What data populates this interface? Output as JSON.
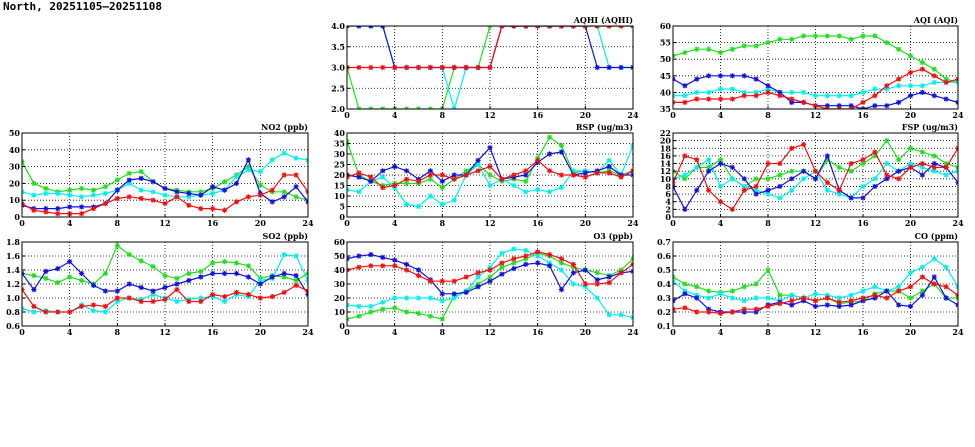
{
  "page": {
    "title": "North, 20251105–20251108"
  },
  "colors": {
    "green": "#22dd22",
    "cyan": "#00eeee",
    "blue": "#1111dd",
    "red": "#ee1111"
  },
  "chart_data": [
    {
      "id": "aqhi",
      "type": "line",
      "title": "AQHI (AQHI)",
      "xlim": [
        0,
        24
      ],
      "xticks": [
        0,
        4,
        8,
        12,
        16,
        20,
        24
      ],
      "ylim": [
        2,
        4
      ],
      "yticks": [
        "2.0",
        "2.5",
        "3.0",
        "3.5",
        "4.0"
      ],
      "grid": true,
      "series": [
        {
          "color": "green",
          "values": [
            3,
            2,
            2,
            2,
            2,
            2,
            2,
            2,
            2,
            3,
            3,
            3,
            4,
            4,
            4,
            4,
            4,
            4,
            4,
            4,
            4,
            4,
            4,
            4,
            4
          ]
        },
        {
          "color": "cyan",
          "values": [
            4,
            4,
            4,
            4,
            3,
            3,
            3,
            3,
            3,
            2,
            3,
            3,
            3,
            4,
            4,
            4,
            4,
            4,
            4,
            4,
            4,
            4,
            3,
            3,
            3
          ]
        },
        {
          "color": "blue",
          "values": [
            4,
            4,
            4,
            4,
            3,
            3,
            3,
            3,
            3,
            3,
            3,
            3,
            3,
            4,
            4,
            4,
            4,
            4,
            4,
            4,
            4,
            3,
            3,
            3,
            3
          ]
        },
        {
          "color": "red",
          "values": [
            3,
            3,
            3,
            3,
            3,
            3,
            3,
            3,
            3,
            3,
            3,
            3,
            3,
            4,
            4,
            4,
            4,
            4,
            4,
            4,
            4,
            4,
            4,
            4,
            4
          ]
        }
      ]
    },
    {
      "id": "aqi",
      "type": "line",
      "title": "AQI (AQI)",
      "xlim": [
        0,
        24
      ],
      "xticks": [
        0,
        4,
        8,
        12,
        16,
        20,
        24
      ],
      "ylim": [
        35,
        60
      ],
      "yticks": [
        "35",
        "40",
        "45",
        "50",
        "55",
        "60"
      ],
      "grid": true,
      "series": [
        {
          "color": "green",
          "values": [
            51,
            52,
            53,
            53,
            52,
            53,
            54,
            54,
            55,
            56,
            56,
            57,
            57,
            57,
            57,
            56,
            57,
            57,
            55,
            53,
            51,
            49,
            47,
            44,
            43
          ]
        },
        {
          "color": "cyan",
          "values": [
            39,
            39,
            40,
            40,
            41,
            41,
            40,
            40,
            41,
            40,
            40,
            40,
            39,
            39,
            39,
            39,
            40,
            41,
            41,
            42,
            42,
            42,
            43,
            43,
            43
          ]
        },
        {
          "color": "blue",
          "values": [
            44,
            42,
            44,
            45,
            45,
            45,
            45,
            44,
            42,
            40,
            37,
            37,
            36,
            36,
            36,
            36,
            35,
            36,
            36,
            37,
            39,
            40,
            39,
            38,
            37
          ]
        },
        {
          "color": "red",
          "values": [
            37,
            37,
            38,
            38,
            38,
            38,
            39,
            39,
            40,
            39,
            38,
            37,
            36,
            35,
            35,
            35,
            37,
            39,
            42,
            44,
            46,
            47,
            45,
            43,
            44
          ]
        }
      ]
    },
    {
      "id": "no2",
      "type": "line",
      "title": "NO2 (ppb)",
      "xlim": [
        0,
        24
      ],
      "xticks": [
        0,
        4,
        8,
        12,
        16,
        20,
        24
      ],
      "ylim": [
        0,
        50
      ],
      "yticks": [
        "0",
        "10",
        "20",
        "30",
        "40",
        "50"
      ],
      "grid": true,
      "series": [
        {
          "color": "green",
          "values": [
            33,
            20,
            17,
            15,
            16,
            17,
            16,
            18,
            22,
            26,
            27,
            21,
            17,
            16,
            15,
            15,
            17,
            21,
            25,
            30,
            19,
            15,
            15,
            12,
            10
          ]
        },
        {
          "color": "cyan",
          "values": [
            15,
            13,
            14,
            14,
            13,
            12,
            13,
            14,
            16,
            20,
            16,
            15,
            13,
            12,
            12,
            13,
            14,
            16,
            24,
            28,
            27,
            34,
            38,
            35,
            34
          ]
        },
        {
          "color": "blue",
          "values": [
            7,
            5,
            5,
            5,
            6,
            6,
            6,
            8,
            16,
            22,
            23,
            21,
            17,
            15,
            14,
            13,
            18,
            16,
            20,
            34,
            14,
            9,
            12,
            18,
            9
          ]
        },
        {
          "color": "red",
          "values": [
            8,
            4,
            3,
            2,
            2,
            2,
            5,
            8,
            11,
            12,
            11,
            10,
            8,
            12,
            7,
            5,
            5,
            4,
            9,
            12,
            13,
            16,
            25,
            25,
            15
          ]
        }
      ]
    },
    {
      "id": "rsp",
      "type": "line",
      "title": "RSP (ug/m3)",
      "xlim": [
        0,
        24
      ],
      "xticks": [
        0,
        4,
        8,
        12,
        16,
        20,
        24
      ],
      "ylim": [
        0,
        40
      ],
      "yticks": [
        "0",
        "5",
        "10",
        "15",
        "20",
        "25",
        "30",
        "35",
        "40"
      ],
      "grid": true,
      "series": [
        {
          "color": "green",
          "values": [
            36,
            20,
            17,
            15,
            16,
            16,
            16,
            18,
            14,
            18,
            22,
            25,
            20,
            17,
            18,
            17,
            28,
            38,
            34,
            21,
            22,
            21,
            22,
            20,
            22
          ]
        },
        {
          "color": "cyan",
          "values": [
            13,
            12,
            17,
            19,
            14,
            6,
            5,
            10,
            6,
            8,
            20,
            25,
            15,
            18,
            15,
            12,
            13,
            12,
            14,
            22,
            22,
            21,
            27,
            20,
            34
          ]
        },
        {
          "color": "blue",
          "values": [
            20,
            19,
            17,
            22,
            24,
            22,
            18,
            22,
            17,
            20,
            20,
            27,
            33,
            18,
            19,
            20,
            26,
            30,
            31,
            20,
            21,
            22,
            24,
            20,
            20
          ]
        },
        {
          "color": "red",
          "values": [
            19,
            21,
            19,
            14,
            15,
            18,
            17,
            20,
            20,
            18,
            20,
            22,
            24,
            18,
            20,
            22,
            27,
            22,
            20,
            20,
            19,
            21,
            21,
            19,
            22
          ]
        }
      ]
    },
    {
      "id": "fsp",
      "type": "line",
      "title": "FSP (ug/m3)",
      "xlim": [
        0,
        24
      ],
      "xticks": [
        0,
        4,
        8,
        12,
        16,
        20,
        24
      ],
      "ylim": [
        0,
        22
      ],
      "yticks": [
        "0",
        "2",
        "4",
        "6",
        "8",
        "10",
        "12",
        "14",
        "16",
        "18",
        "20",
        "22"
      ],
      "grid": true,
      "series": [
        {
          "color": "green",
          "values": [
            12,
            10,
            13,
            13,
            15,
            10,
            8,
            10,
            10,
            11,
            12,
            12,
            10,
            15,
            13,
            12,
            14,
            16,
            20,
            15,
            18,
            17,
            16,
            14,
            13
          ]
        },
        {
          "color": "cyan",
          "values": [
            10,
            11,
            13,
            15,
            8,
            10,
            8,
            7,
            6,
            5,
            7,
            10,
            12,
            7,
            6,
            5,
            8,
            10,
            14,
            12,
            14,
            13,
            12,
            11,
            12
          ]
        },
        {
          "color": "blue",
          "values": [
            8,
            2,
            7,
            12,
            14,
            13,
            10,
            6,
            7,
            8,
            10,
            12,
            10,
            16,
            7,
            5,
            5,
            8,
            10,
            12,
            13,
            11,
            14,
            13,
            9
          ]
        },
        {
          "color": "red",
          "values": [
            9,
            16,
            15,
            7,
            4,
            2,
            7,
            8,
            14,
            14,
            18,
            19,
            12,
            9,
            7,
            14,
            15,
            17,
            11,
            10,
            13,
            14,
            13,
            13,
            18
          ]
        }
      ]
    },
    {
      "id": "so2",
      "type": "line",
      "title": "SO2 (ppb)",
      "xlim": [
        0,
        24
      ],
      "xticks": [
        0,
        4,
        8,
        12,
        16,
        20,
        24
      ],
      "ylim": [
        0.6,
        1.8
      ],
      "yticks": [
        "0.6",
        "0.8",
        "1.0",
        "1.2",
        "1.4",
        "1.6",
        "1.8"
      ],
      "grid": true,
      "series": [
        {
          "color": "green",
          "values": [
            1.35,
            1.32,
            1.28,
            1.22,
            1.3,
            1.25,
            1.2,
            1.35,
            1.75,
            1.62,
            1.53,
            1.45,
            1.32,
            1.28,
            1.35,
            1.38,
            1.5,
            1.52,
            1.5,
            1.46,
            1.28,
            1.32,
            1.3,
            1.25,
            1.35
          ]
        },
        {
          "color": "cyan",
          "values": [
            0.85,
            0.8,
            0.82,
            0.8,
            0.8,
            0.9,
            0.82,
            0.8,
            0.95,
            1.0,
            0.98,
            1.05,
            1.0,
            0.95,
            0.98,
            1.0,
            1.02,
            0.95,
            1.05,
            1.02,
            1.25,
            1.28,
            1.62,
            1.6,
            1.25
          ]
        },
        {
          "color": "blue",
          "values": [
            1.35,
            1.12,
            1.38,
            1.42,
            1.52,
            1.35,
            1.18,
            1.1,
            1.1,
            1.2,
            1.15,
            1.1,
            1.15,
            1.2,
            1.25,
            1.3,
            1.35,
            1.35,
            1.35,
            1.3,
            1.2,
            1.3,
            1.35,
            1.32,
            1.05
          ]
        },
        {
          "color": "red",
          "values": [
            1.12,
            0.88,
            0.8,
            0.8,
            0.8,
            0.88,
            0.9,
            0.88,
            1.0,
            1.0,
            0.95,
            0.95,
            0.98,
            1.12,
            0.95,
            0.95,
            1.05,
            1.02,
            1.08,
            1.05,
            1.0,
            1.02,
            1.08,
            1.18,
            1.1
          ]
        }
      ]
    },
    {
      "id": "o3",
      "type": "line",
      "title": "O3 (ppb)",
      "xlim": [
        0,
        24
      ],
      "xticks": [
        0,
        4,
        8,
        12,
        16,
        20,
        24
      ],
      "ylim": [
        0,
        60
      ],
      "yticks": [
        "0",
        "10",
        "20",
        "30",
        "40",
        "50",
        "60"
      ],
      "grid": true,
      "series": [
        {
          "color": "green",
          "values": [
            5,
            7,
            10,
            12,
            13,
            10,
            9,
            7,
            5,
            22,
            25,
            30,
            35,
            42,
            45,
            48,
            52,
            50,
            45,
            42,
            40,
            38,
            36,
            40,
            48
          ]
        },
        {
          "color": "cyan",
          "values": [
            15,
            14,
            14,
            17,
            20,
            20,
            20,
            20,
            18,
            20,
            25,
            35,
            42,
            52,
            55,
            54,
            50,
            45,
            40,
            30,
            28,
            20,
            8,
            8,
            6
          ]
        },
        {
          "color": "blue",
          "values": [
            48,
            50,
            51,
            49,
            47,
            44,
            40,
            33,
            23,
            23,
            24,
            28,
            32,
            37,
            41,
            44,
            45,
            43,
            26,
            38,
            40,
            33,
            35,
            38,
            39
          ]
        },
        {
          "color": "red",
          "values": [
            40,
            42,
            43,
            43,
            43,
            40,
            36,
            32,
            32,
            32,
            35,
            38,
            40,
            45,
            48,
            50,
            53,
            51,
            48,
            44,
            30,
            30,
            31,
            38,
            44
          ]
        }
      ]
    },
    {
      "id": "co",
      "type": "line",
      "title": "CO (ppm)",
      "xlim": [
        0,
        24
      ],
      "xticks": [
        0,
        4,
        8,
        12,
        16,
        20,
        24
      ],
      "ylim": [
        0.1,
        0.7
      ],
      "yticks": [
        "0.1",
        "0.2",
        "0.3",
        "0.4",
        "0.5",
        "0.6",
        "0.7"
      ],
      "grid": true,
      "series": [
        {
          "color": "green",
          "values": [
            0.45,
            0.4,
            0.38,
            0.35,
            0.34,
            0.35,
            0.38,
            0.4,
            0.5,
            0.32,
            0.32,
            0.3,
            0.28,
            0.3,
            0.26,
            0.27,
            0.28,
            0.33,
            0.35,
            0.35,
            0.3,
            0.35,
            0.4,
            0.3,
            0.3
          ]
        },
        {
          "color": "cyan",
          "values": [
            0.42,
            0.35,
            0.32,
            0.3,
            0.33,
            0.3,
            0.28,
            0.3,
            0.3,
            0.28,
            0.32,
            0.3,
            0.33,
            0.32,
            0.3,
            0.32,
            0.35,
            0.38,
            0.35,
            0.38,
            0.48,
            0.52,
            0.58,
            0.52,
            0.38
          ]
        },
        {
          "color": "blue",
          "values": [
            0.28,
            0.33,
            0.3,
            0.22,
            0.2,
            0.2,
            0.2,
            0.2,
            0.25,
            0.27,
            0.25,
            0.28,
            0.24,
            0.25,
            0.24,
            0.25,
            0.28,
            0.3,
            0.35,
            0.25,
            0.24,
            0.32,
            0.45,
            0.3,
            0.25
          ]
        },
        {
          "color": "red",
          "values": [
            0.22,
            0.23,
            0.2,
            0.2,
            0.19,
            0.2,
            0.22,
            0.22,
            0.24,
            0.26,
            0.28,
            0.3,
            0.28,
            0.3,
            0.27,
            0.28,
            0.3,
            0.32,
            0.3,
            0.35,
            0.38,
            0.45,
            0.4,
            0.38,
            0.32
          ]
        }
      ]
    }
  ]
}
